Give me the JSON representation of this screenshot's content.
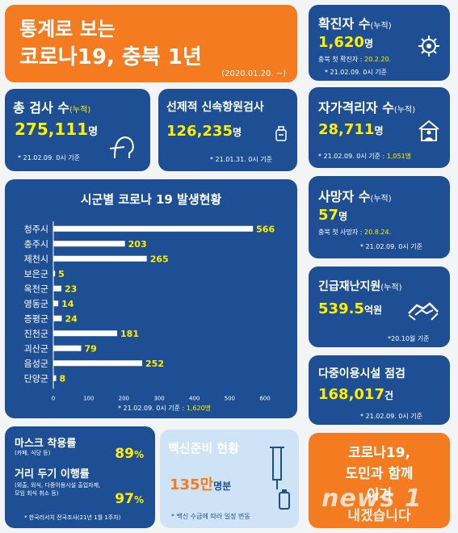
{
  "header": {
    "line1": "통계로 보는",
    "line2": "코로나19, 충북 1년",
    "period": "(2020.01.20. ~)"
  },
  "confirmed": {
    "title": "확진자 수",
    "title_suffix": "(누적)",
    "value": "1,620",
    "unit": "명",
    "first_label": "충북 첫 확진자 : ",
    "first_date": "20.2.20.",
    "basis": "* 21.02.09. 0시 기준"
  },
  "tests": {
    "title": "총 검사 수",
    "title_suffix": "(누적)",
    "value": "275,111",
    "unit": "명",
    "basis": "* 21.02.09. 0시 기준"
  },
  "antibody": {
    "title": "선제적 신속항원검사",
    "value": "126,235",
    "unit": "명",
    "basis": "* 21.01.31. 0시 기준"
  },
  "quarantine": {
    "title": "자가격리자 수",
    "title_suffix": "(누적)",
    "value": "28,711",
    "unit": "명",
    "basis": "* 21.02.09. 0시 기준 : ",
    "current": "1,051명"
  },
  "deaths": {
    "title": "사망자 수",
    "title_suffix": "(누적)",
    "value": "57",
    "unit": "명",
    "first_label": "충북 첫 사망자 : ",
    "first_date": "20.8.24.",
    "basis": "* 21.02.09. 0시 기준"
  },
  "relief": {
    "title": "긴급재난지원",
    "title_suffix": "(누적)",
    "value": "539.5",
    "unit": "억원",
    "basis": "*20.10월 기준"
  },
  "facility": {
    "title": "다중이용시설 점검",
    "value": "168,017",
    "unit": "건",
    "basis": "* 21.02.09. 0시 기준"
  },
  "mask": {
    "title": "마스크 착용률",
    "sub": "(카페, 식당 등)",
    "value": "89",
    "unit": "%"
  },
  "distance": {
    "title": "거리 두기 이행률",
    "sub1": "(외출, 외식, 다중이용시설 출입자제,",
    "sub2": "모임 회식 취소 등)",
    "value": "97",
    "unit": "%",
    "source": "* 한국리서치 전국조사(21년 1월 1주차)"
  },
  "vaccine": {
    "title": "백신준비 현황",
    "value": "135만",
    "unit": "명분",
    "note": "* 백신 수급에 따라 일정 변동"
  },
  "slogan": {
    "line1": "코로나19,",
    "line2": "도민과 함께",
    "line3": "이겨",
    "line4": "내겠습니다"
  },
  "watermark": "news 1",
  "chart_data": {
    "type": "bar",
    "orientation": "horizontal",
    "title": "시군별 코로나 19 발생현황",
    "categories": [
      "청주시",
      "충주시",
      "제천시",
      "보은군",
      "옥천군",
      "영동군",
      "증평군",
      "진천군",
      "괴산군",
      "음성군",
      "단양군"
    ],
    "values": [
      566,
      203,
      265,
      5,
      23,
      14,
      24,
      181,
      79,
      252,
      8
    ],
    "xlim": [
      0,
      600
    ],
    "xticks": [
      "0",
      "100",
      "200",
      "300",
      "400",
      "500",
      "600"
    ],
    "bar_color": "#ffffff",
    "label_color": "#ffee00",
    "basis": "* 21.02.09. 0시 기준 : ",
    "total": "1,620명"
  },
  "colors": {
    "navy": "#1e4f94",
    "orange": "#f47b20",
    "yellow": "#ffee00",
    "light": "#cfe3f6"
  }
}
